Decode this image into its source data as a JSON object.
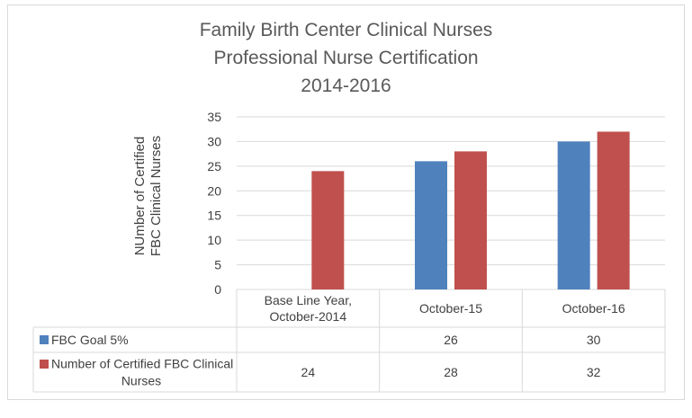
{
  "chart_data": {
    "type": "bar",
    "title": [
      "Family Birth Center Clinical Nurses",
      "Professional Nurse Certification",
      "2014-2016"
    ],
    "ylabel": [
      "NUmber of Certified",
      "FBC Clinical Nurses"
    ],
    "ylim": [
      0,
      35
    ],
    "yticks": [
      0,
      5,
      10,
      15,
      20,
      25,
      30,
      35
    ],
    "grid": true,
    "legend": "data-table",
    "categories": [
      [
        "Base Line Year,",
        "October-2014"
      ],
      [
        "October-15"
      ],
      [
        "October-16"
      ]
    ],
    "series": [
      {
        "name": "FBC Goal 5%",
        "legend_lines": [
          "FBC Goal 5%"
        ],
        "color": "#4f81bd",
        "values": [
          null,
          26,
          30
        ],
        "value_labels": [
          "",
          "26",
          "30"
        ]
      },
      {
        "name": "Number of Certified FBC Clinical Nurses",
        "legend_lines": [
          "Number of Certified FBC Clinical",
          "Nurses"
        ],
        "color": "#c0504d",
        "values": [
          24,
          28,
          32
        ],
        "value_labels": [
          "24",
          "28",
          "32"
        ]
      }
    ]
  }
}
